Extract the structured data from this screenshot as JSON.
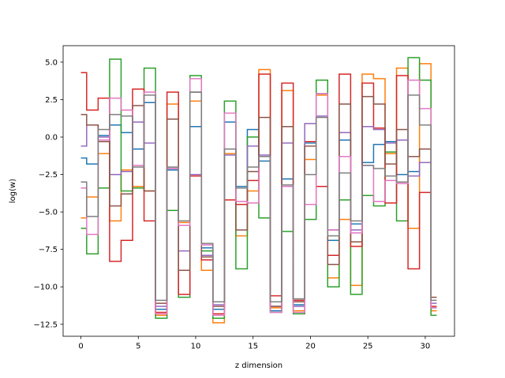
{
  "chart_data": {
    "type": "line",
    "step": "mid",
    "xlabel": "z dimension",
    "ylabel": "log(w)",
    "xlim": [
      -1.55,
      32.55
    ],
    "ylim": [
      -13.3,
      6.1
    ],
    "xticks": [
      0,
      5,
      10,
      15,
      20,
      25,
      30
    ],
    "yticks": [
      -12.5,
      -10.0,
      -7.5,
      -5.0,
      -2.5,
      0.0,
      2.5,
      5.0
    ],
    "xtick_labels": [
      "0",
      "5",
      "10",
      "15",
      "20",
      "25",
      "30"
    ],
    "ytick_labels": [
      "−12.5",
      "−10.0",
      "−7.5",
      "−5.0",
      "−2.5",
      "0.0",
      "2.5",
      "5.0"
    ],
    "x": [
      0,
      1,
      2,
      3,
      4,
      5,
      6,
      7,
      8,
      9,
      10,
      11,
      12,
      13,
      14,
      15,
      16,
      17,
      18,
      19,
      20,
      21,
      22,
      23,
      24,
      25,
      26,
      27,
      28,
      29,
      30,
      31
    ],
    "series": [
      {
        "color": "#1f77b4",
        "values": [
          -1.4,
          -1.8,
          0.1,
          0.8,
          0.3,
          -0.8,
          2.3,
          -11.5,
          -2.2,
          -5.9,
          0.7,
          -7.4,
          -11.5,
          1.0,
          -3.3,
          0.5,
          -1.6,
          -11.6,
          -2.8,
          -11.2,
          -0.4,
          2.9,
          -6.9,
          -0.2,
          -5.8,
          -1.7,
          -0.5,
          -0.3,
          -2.5,
          -2.3,
          -0.8,
          -11.4
        ]
      },
      {
        "color": "#ff7f0e",
        "values": [
          -5.4,
          -4.0,
          -1.1,
          -5.6,
          -2.2,
          -3.3,
          -3.6,
          -11.9,
          2.2,
          -5.7,
          2.4,
          -8.9,
          -12.4,
          -1.1,
          -6.6,
          -3.6,
          4.5,
          -11.4,
          3.1,
          -11.6,
          -1.5,
          2.8,
          -9.4,
          -5.5,
          -9.9,
          4.2,
          3.9,
          -1.1,
          4.6,
          -6.1,
          4.9,
          -11.6
        ]
      },
      {
        "color": "#2ca02c",
        "values": [
          -6.1,
          -7.8,
          -3.4,
          5.2,
          -3.6,
          -3.4,
          4.6,
          -12.1,
          -4.9,
          -10.7,
          4.1,
          -7.6,
          -12.1,
          2.4,
          -8.8,
          0.0,
          -5.4,
          -11.7,
          -6.3,
          -11.8,
          -5.5,
          3.8,
          -10.0,
          -4.2,
          -10.5,
          -3.9,
          -4.6,
          -1.0,
          -5.6,
          5.3,
          3.8,
          -11.9
        ]
      },
      {
        "color": "#d62728",
        "values": [
          4.3,
          1.8,
          2.6,
          -8.3,
          -6.9,
          3.2,
          -5.6,
          -11.7,
          3.0,
          -10.5,
          -2.6,
          -8.2,
          -11.8,
          -4.2,
          -4.5,
          -2.9,
          4.2,
          -10.6,
          3.6,
          -10.9,
          -0.3,
          -3.3,
          -7.9,
          4.2,
          -7.3,
          3.6,
          0.6,
          -4.4,
          4.1,
          -8.8,
          -3.7,
          -11.3
        ]
      },
      {
        "color": "#9467bd",
        "values": [
          -0.6,
          0.8,
          0.0,
          -2.5,
          -2.3,
          1.0,
          -0.4,
          -11.3,
          -2.1,
          -7.6,
          -2.5,
          -7.9,
          -11.2,
          -1.2,
          -3.4,
          -0.6,
          -1.2,
          -11.3,
          -0.4,
          -11.3,
          0.9,
          1.4,
          -6.2,
          0.3,
          -6.2,
          0.7,
          0.5,
          -0.4,
          -0.2,
          -2.6,
          -1.7,
          -11.1
        ]
      },
      {
        "color": "#8c564b",
        "values": [
          1.5,
          0.8,
          -0.3,
          -4.6,
          -3.8,
          2.1,
          -3.6,
          -11.1,
          1.2,
          -8.9,
          3.0,
          -8.0,
          -11.3,
          -0.8,
          -6.2,
          -2.3,
          1.3,
          -11.3,
          0.7,
          -11.0,
          -0.6,
          1.3,
          -8.5,
          2.2,
          -7.0,
          2.7,
          2.2,
          -1.8,
          0.5,
          -1.3,
          -0.8,
          -10.7
        ]
      },
      {
        "color": "#e377c2",
        "values": [
          -3.4,
          -6.5,
          -0.2,
          2.6,
          1.8,
          -1.9,
          3.0,
          -11.8,
          -2.1,
          -5.9,
          3.9,
          -7.2,
          -11.9,
          1.6,
          -4.3,
          -4.4,
          -1.3,
          -11.7,
          -3.3,
          -11.7,
          -4.5,
          2.9,
          -6.2,
          -1.3,
          -6.4,
          -1.9,
          -4.3,
          -2.9,
          -3.1,
          3.8,
          1.9,
          -11.4
        ]
      },
      {
        "color": "#7f7f7f",
        "values": [
          -3.0,
          -5.3,
          0.5,
          1.5,
          1.4,
          -2.0,
          2.8,
          -10.9,
          -2.0,
          -5.6,
          3.0,
          -7.1,
          -11.0,
          -0.8,
          -3.4,
          -2.0,
          -1.3,
          -11.0,
          -3.2,
          -10.8,
          -2.5,
          1.3,
          -6.6,
          -2.4,
          -5.6,
          -1.9,
          -2.1,
          -2.6,
          -3.0,
          2.8,
          0.8,
          -10.9
        ]
      }
    ]
  }
}
